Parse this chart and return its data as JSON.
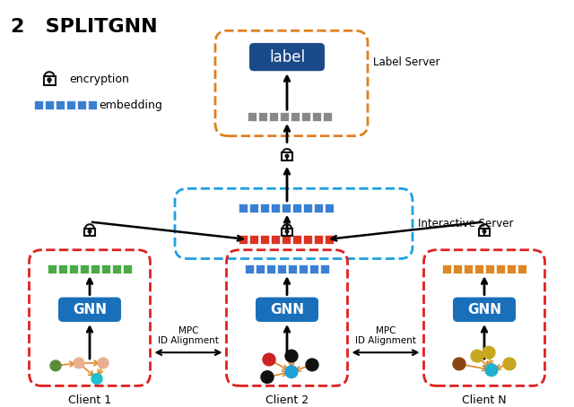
{
  "title": "2   SPLITGNN",
  "bg_color": "#ffffff",
  "gnn_color": "#1a6fbb",
  "gnn_text_color": "#ffffff",
  "label_box_color": "#1a4a8a",
  "label_text_color": "#ffffff",
  "red_dashed_color": "#e02020",
  "orange_dashed_color": "#e08020",
  "blue_dashed_color": "#20a0e0",
  "embedding_blue": "#3a7fd4",
  "embedding_green": "#4aaa44",
  "embedding_red": "#dd3322",
  "embedding_orange": "#dd8822",
  "embedding_gray": "#888888",
  "arrow_color": "#111111",
  "client1_label": "Client 1",
  "client2_label": "Client 2",
  "clientN_label": "Client N",
  "interactive_label": "Interactive Server",
  "label_server_label": "Label Server",
  "mpc_label": "MPC\nID Alignment",
  "legend_encryption": "encryption",
  "legend_embedding": "embedding",
  "gnn_label": "GNN",
  "label_label": "label"
}
